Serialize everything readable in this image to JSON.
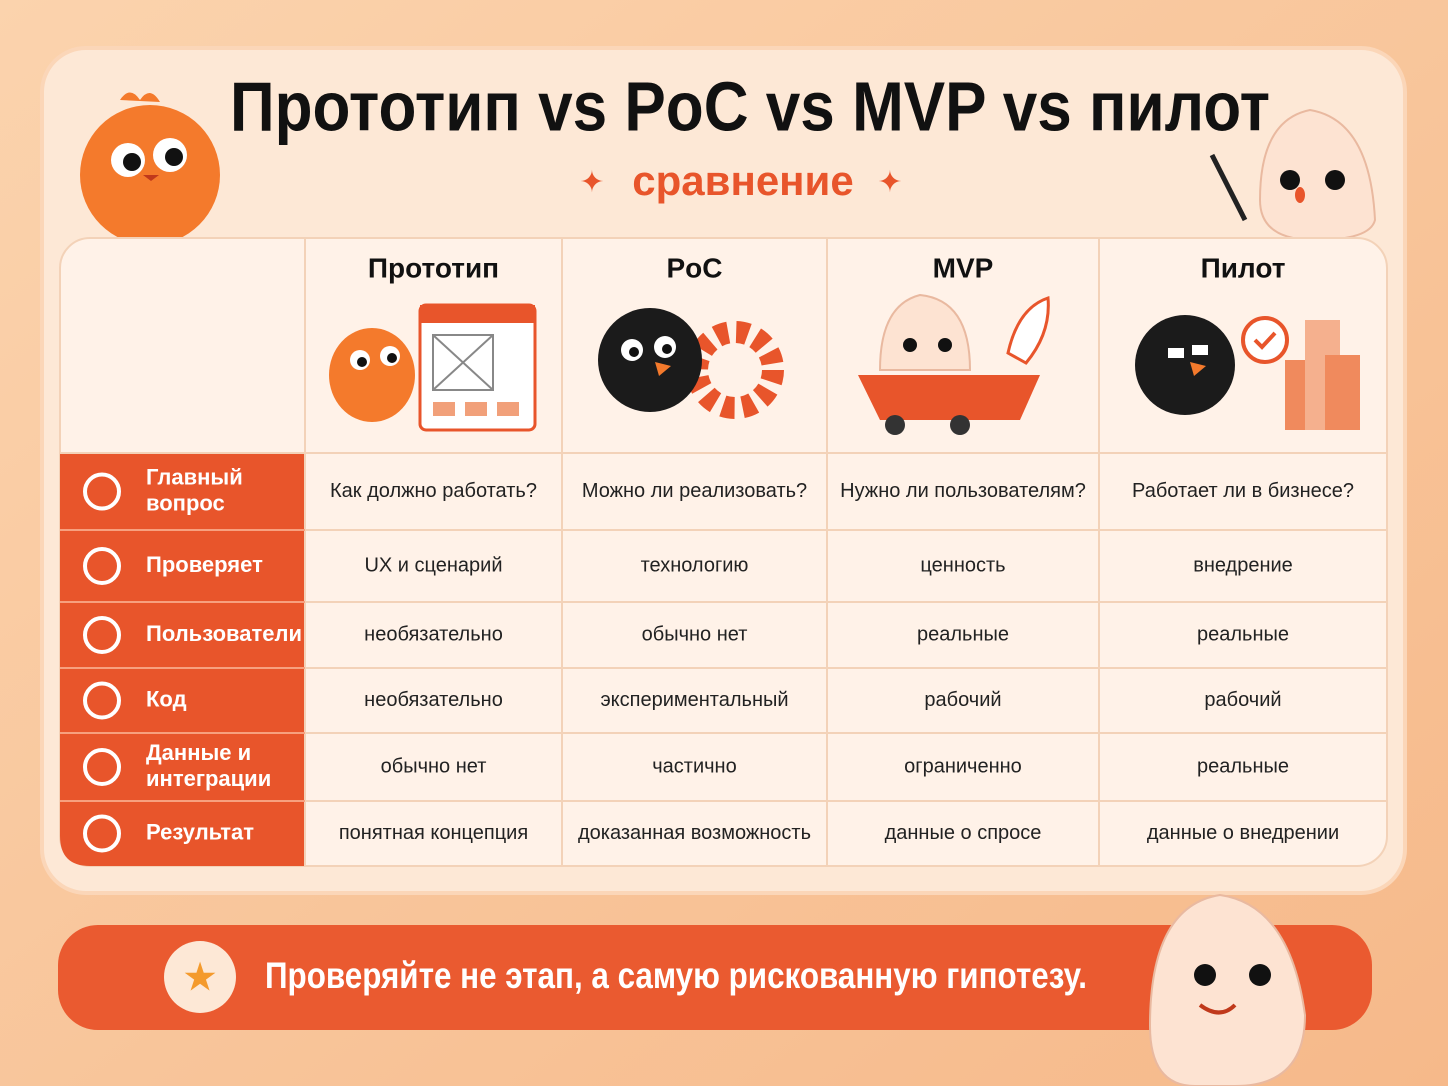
{
  "header": {
    "title": "Прототип vs PoC vs MVP vs пилот",
    "subtitle": "сравнение"
  },
  "table": {
    "columns": [
      "Прототип",
      "PoC",
      "MVP",
      "Пилот"
    ],
    "rows": [
      {
        "label": "Главный вопрос",
        "cells": [
          "Как должно работать?",
          "Можно ли реализовать?",
          "Нужно ли пользователям?",
          "Работает ли в бизнесе?"
        ]
      },
      {
        "label": "Проверяет",
        "cells": [
          "UX и сценарий",
          "технологию",
          "ценность",
          "внедрение"
        ]
      },
      {
        "label": "Пользователи",
        "cells": [
          "необязательно",
          "обычно нет",
          "реальные",
          "реальные"
        ]
      },
      {
        "label": "Код",
        "cells": [
          "необязательно",
          "экспериментальный",
          "рабочий",
          "рабочий"
        ]
      },
      {
        "label": "Данные и интеграции",
        "cells": [
          "обычно нет",
          "частично",
          "ограниченно",
          "реальные"
        ]
      },
      {
        "label": "Результат",
        "cells": [
          "понятная концепция",
          "доказанная возможность",
          "данные о спросе",
          "данные о внедрении"
        ]
      }
    ]
  },
  "footer": {
    "text": "Проверяйте не этап, а самую рискованную гипотезу."
  }
}
